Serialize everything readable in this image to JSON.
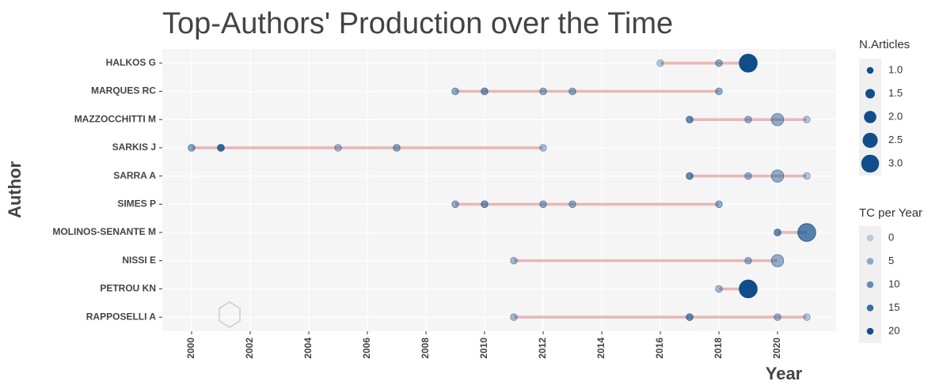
{
  "chart_data": {
    "type": "timeline",
    "title": "Top-Authors' Production over the Time",
    "x_label": "Year",
    "y_label": "Author",
    "xlim": [
      1999,
      2022
    ],
    "xticks": [
      2000,
      2002,
      2004,
      2006,
      2008,
      2010,
      2012,
      2014,
      2016,
      2018,
      2020
    ],
    "grid": true,
    "point_color": "#104e8b",
    "segment_color": "#e39a9a",
    "size_legend": {
      "title": "N.Articles",
      "ticks": [
        {
          "value": 1,
          "label": "1.0"
        },
        {
          "value": 1.5,
          "label": "1.5"
        },
        {
          "value": 2,
          "label": "2.0"
        },
        {
          "value": 2.5,
          "label": "2.5"
        },
        {
          "value": 3,
          "label": "3.0"
        }
      ]
    },
    "alpha_legend": {
      "title": "TC per Year",
      "ticks": [
        0,
        5,
        10,
        15,
        20
      ]
    },
    "rows": [
      {
        "author": "HALKOS G",
        "years": [
          2016,
          2018,
          2019
        ],
        "articles": [
          1,
          1,
          3
        ],
        "tc_per_year": [
          1,
          5,
          20
        ]
      },
      {
        "author": "MARQUES RC",
        "years": [
          2009,
          2010,
          2012,
          2013,
          2018
        ],
        "articles": [
          1,
          1,
          1,
          1,
          1
        ],
        "tc_per_year": [
          5,
          8,
          5,
          5,
          5
        ]
      },
      {
        "author": "MAZZOCCHITTI M",
        "years": [
          2017,
          2019,
          2020,
          2021
        ],
        "articles": [
          1,
          1,
          2,
          1
        ],
        "tc_per_year": [
          10,
          4,
          5,
          1
        ]
      },
      {
        "author": "SARKIS J",
        "years": [
          2000,
          2001,
          2005,
          2007,
          2012
        ],
        "articles": [
          1,
          1,
          1,
          1,
          1
        ],
        "tc_per_year": [
          6,
          15,
          3,
          6,
          2
        ]
      },
      {
        "author": "SARRA A",
        "years": [
          2017,
          2019,
          2020,
          2021
        ],
        "articles": [
          1,
          1,
          2,
          1
        ],
        "tc_per_year": [
          10,
          4,
          5,
          1
        ]
      },
      {
        "author": "SIMES P",
        "years": [
          2009,
          2010,
          2012,
          2013,
          2018
        ],
        "articles": [
          1,
          1,
          1,
          1,
          1
        ],
        "tc_per_year": [
          5,
          8,
          5,
          5,
          5
        ]
      },
      {
        "author": "MOLINOS-SENANTE M",
        "years": [
          2020,
          2021
        ],
        "articles": [
          1,
          3
        ],
        "tc_per_year": [
          10,
          12
        ]
      },
      {
        "author": "NISSI E",
        "years": [
          2011,
          2019,
          2020
        ],
        "articles": [
          1,
          1,
          2
        ],
        "tc_per_year": [
          3,
          4,
          5
        ]
      },
      {
        "author": "PETROU KN",
        "years": [
          2018,
          2019
        ],
        "articles": [
          1,
          3
        ],
        "tc_per_year": [
          3,
          20
        ]
      },
      {
        "author": "RAPPOSELLI A",
        "years": [
          2011,
          2017,
          2020,
          2021
        ],
        "articles": [
          1,
          1,
          1,
          1
        ],
        "tc_per_year": [
          3,
          10,
          4,
          1
        ]
      }
    ]
  }
}
